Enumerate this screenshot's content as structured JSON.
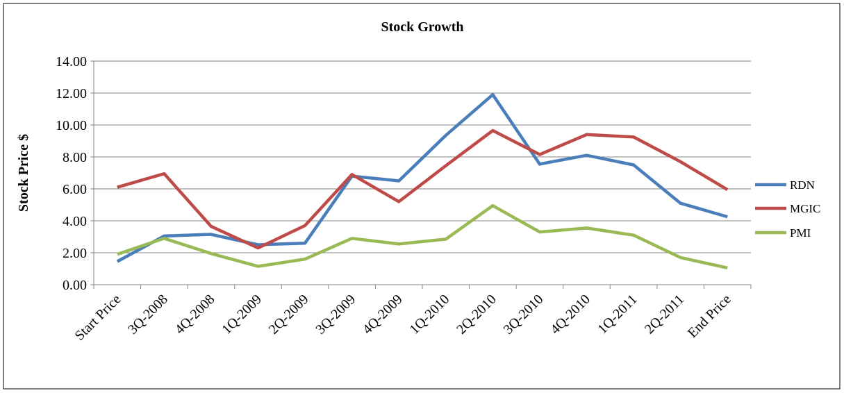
{
  "chart_data": {
    "type": "line",
    "title": "Stock Growth",
    "y_label": "Stock Price $",
    "categories": [
      "Start Price",
      "3Q-2008",
      "4Q-2008",
      "1Q-2009",
      "2Q-2009",
      "3Q-2009",
      "4Q-2009",
      "1Q-2010",
      "2Q-2010",
      "3Q-2010",
      "4Q-2010",
      "1Q-2011",
      "2Q-2011",
      "End Price"
    ],
    "series": [
      {
        "name": "RDN",
        "color": "#4a7ebb",
        "values": [
          1.45,
          3.05,
          3.15,
          2.5,
          2.6,
          6.8,
          6.5,
          9.35,
          11.9,
          7.55,
          8.1,
          7.5,
          5.1,
          4.25
        ]
      },
      {
        "name": "MGIC",
        "color": "#be4b48",
        "values": [
          6.1,
          6.95,
          3.65,
          2.3,
          3.7,
          6.9,
          5.2,
          7.45,
          9.65,
          8.15,
          9.4,
          9.25,
          7.7,
          5.95
        ]
      },
      {
        "name": "PMI",
        "color": "#98b954",
        "values": [
          1.9,
          2.9,
          1.95,
          1.15,
          1.6,
          2.9,
          2.55,
          2.85,
          4.95,
          3.3,
          3.55,
          3.1,
          1.7,
          1.05
        ]
      }
    ],
    "ylim": [
      0,
      14
    ],
    "yticks": [
      {
        "value": 0,
        "label": "0.00"
      },
      {
        "value": 2,
        "label": "2.00"
      },
      {
        "value": 4,
        "label": "4.00"
      },
      {
        "value": 6,
        "label": "6.00"
      },
      {
        "value": 8,
        "label": "8.00"
      },
      {
        "value": 10,
        "label": "10.00"
      },
      {
        "value": 12,
        "label": "12.00"
      },
      {
        "value": 14,
        "label": "14.00"
      }
    ],
    "grid": true,
    "legend": "right"
  }
}
